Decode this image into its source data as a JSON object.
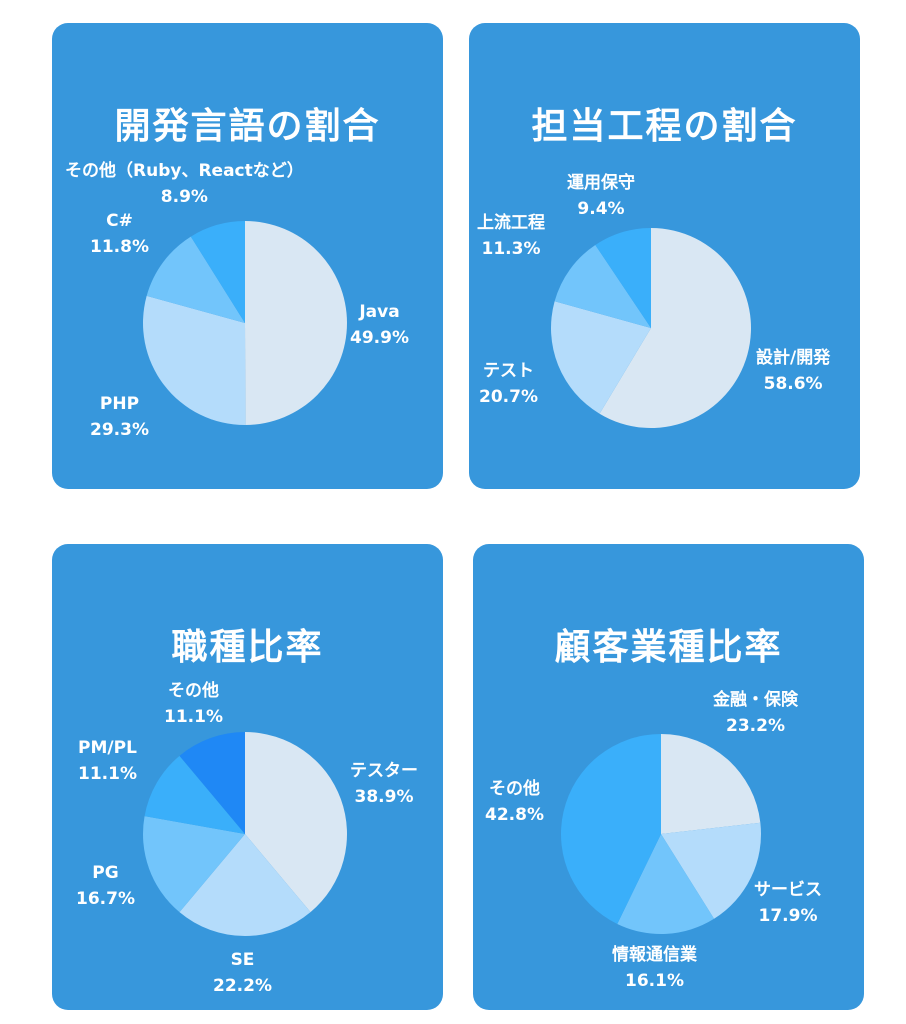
{
  "chart_data": [
    {
      "type": "pie",
      "title": "開発言語の割合",
      "slices": [
        {
          "label": "Java",
          "pct_label": "49.9%",
          "value": 49.9,
          "color": "#d9e7f3"
        },
        {
          "label": "PHP",
          "pct_label": "29.3%",
          "value": 29.3,
          "color": "#b4dcfb"
        },
        {
          "label": "C#",
          "pct_label": "11.8%",
          "value": 11.8,
          "color": "#72c5fb"
        },
        {
          "label": "その他（Ruby、Reactなど）",
          "pct_label": "8.9%",
          "value": 8.9,
          "color": "#3aaffa"
        }
      ]
    },
    {
      "type": "pie",
      "title": "担当工程の割合",
      "slices": [
        {
          "label": "設計/開発",
          "pct_label": "58.6%",
          "value": 58.6,
          "color": "#d9e7f3"
        },
        {
          "label": "テスト",
          "pct_label": "20.7%",
          "value": 20.7,
          "color": "#b4dcfb"
        },
        {
          "label": "上流工程",
          "pct_label": "11.3%",
          "value": 11.3,
          "color": "#72c5fb"
        },
        {
          "label": "運用保守",
          "pct_label": "9.4%",
          "value": 9.4,
          "color": "#3aaffa"
        }
      ]
    },
    {
      "type": "pie",
      "title": "職種比率",
      "slices": [
        {
          "label": "テスター",
          "pct_label": "38.9%",
          "value": 38.9,
          "color": "#d9e7f3"
        },
        {
          "label": "SE",
          "pct_label": "22.2%",
          "value": 22.2,
          "color": "#b4dcfb"
        },
        {
          "label": "PG",
          "pct_label": "16.7%",
          "value": 16.7,
          "color": "#72c5fb"
        },
        {
          "label": "PM/PL",
          "pct_label": "11.1%",
          "value": 11.1,
          "color": "#3aaffa"
        },
        {
          "label": "その他",
          "pct_label": "11.1%",
          "value": 11.1,
          "color": "#1f88f5"
        }
      ]
    },
    {
      "type": "pie",
      "title": "顧客業種比率",
      "slices": [
        {
          "label": "金融・保険",
          "pct_label": "23.2%",
          "value": 23.2,
          "color": "#d9e7f3"
        },
        {
          "label": "サービス",
          "pct_label": "17.9%",
          "value": 17.9,
          "color": "#b4dcfb"
        },
        {
          "label": "情報通信業",
          "pct_label": "16.1%",
          "value": 16.1,
          "color": "#72c5fb"
        },
        {
          "label": "その他",
          "pct_label": "42.8%",
          "value": 42.8,
          "color": "#3aaffa"
        }
      ]
    }
  ]
}
